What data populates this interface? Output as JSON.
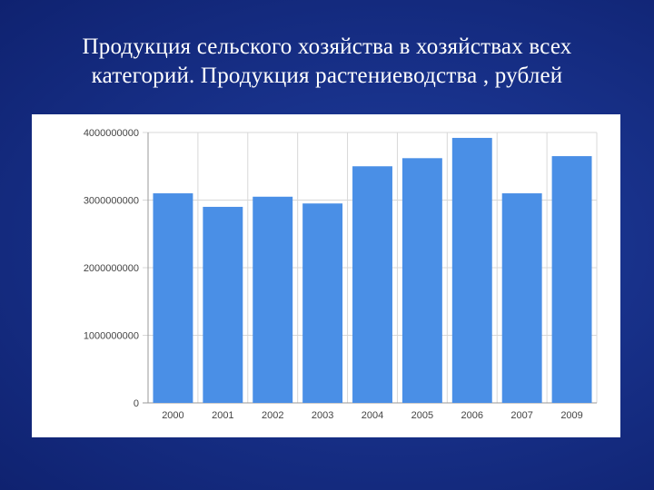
{
  "title": {
    "line1": "Продукция сельского хозяйства в хозяйствах всех",
    "line2": "категорий. Продукция растениеводства , рублей"
  },
  "colors": {
    "bar": "#4a8fe6",
    "grid": "#d8d8d8",
    "axis": "#999999",
    "background": "#1a3590"
  },
  "chart_data": {
    "type": "bar",
    "title": "Продукция сельского хозяйства в хозяйствах всех категорий. Продукция растениеводства , рублей",
    "xlabel": "",
    "ylabel": "",
    "categories": [
      "2000",
      "2001",
      "2002",
      "2003",
      "2004",
      "2005",
      "2006",
      "2007",
      "2009"
    ],
    "values": [
      3100000000,
      2900000000,
      3050000000,
      2950000000,
      3500000000,
      3620000000,
      3920000000,
      3100000000,
      3650000000
    ],
    "ylim": [
      0,
      4000000000
    ],
    "yticks": [
      "0",
      "1000000000",
      "2000000000",
      "3000000000",
      "4000000000"
    ],
    "grid": true,
    "legend": "none"
  }
}
